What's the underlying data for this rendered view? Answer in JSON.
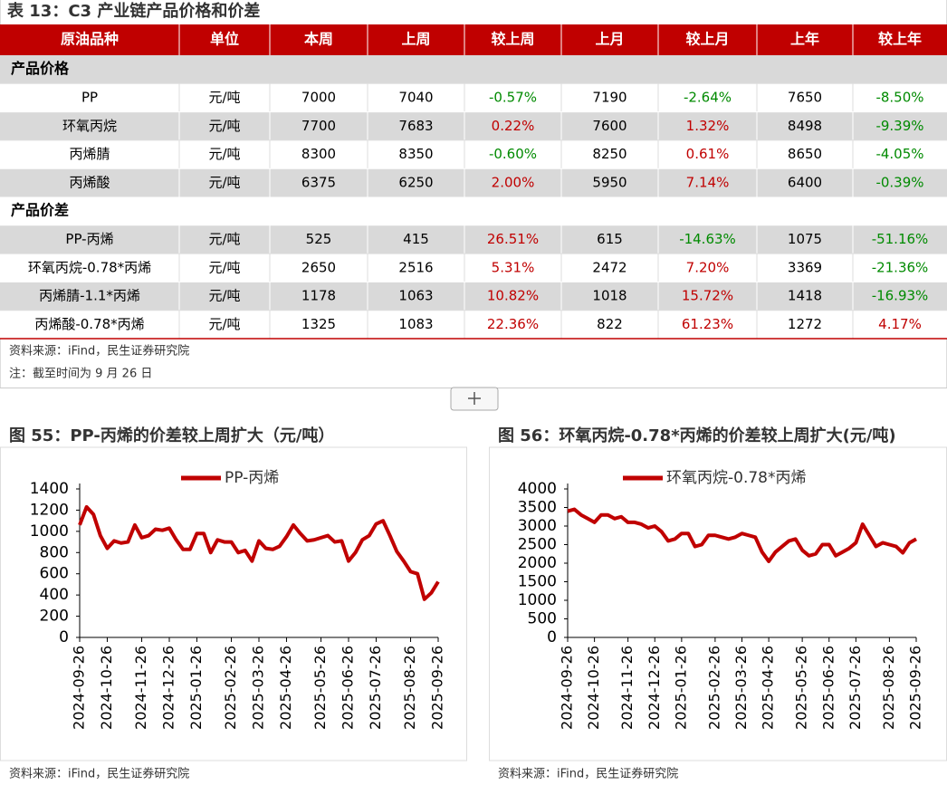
{
  "table": {
    "title": "表 13：C3 产业链产品价格和价差",
    "headers": [
      "原油品种",
      "单位",
      "本周",
      "上周",
      "较上周",
      "上月",
      "较上月",
      "上年",
      "较上年"
    ],
    "sections": [
      {
        "name": "产品价格",
        "rows": [
          [
            "PP",
            "元/吨",
            "7000",
            "7040",
            "-0.57%",
            "7190",
            "-2.64%",
            "7650",
            "-8.50%"
          ],
          [
            "环氧丙烷",
            "元/吨",
            "7700",
            "7683",
            "0.22%",
            "7600",
            "1.32%",
            "8498",
            "-9.39%"
          ],
          [
            "丙烯腈",
            "元/吨",
            "8300",
            "8350",
            "-0.60%",
            "8250",
            "0.61%",
            "8650",
            "-4.05%"
          ],
          [
            "丙烯酸",
            "元/吨",
            "6375",
            "6250",
            "2.00%",
            "5950",
            "7.14%",
            "6400",
            "-0.39%"
          ]
        ]
      },
      {
        "name": "产品价差",
        "rows": [
          [
            "PP-丙烯",
            "元/吨",
            "525",
            "415",
            "26.51%",
            "615",
            "-14.63%",
            "1075",
            "-51.16%"
          ],
          [
            "环氧丙烷-0.78*丙烯",
            "元/吨",
            "2650",
            "2516",
            "5.31%",
            "2472",
            "7.20%",
            "3369",
            "-21.36%"
          ],
          [
            "丙烯腈-1.1*丙烯",
            "元/吨",
            "1178",
            "1063",
            "10.82%",
            "1018",
            "15.72%",
            "1418",
            "-16.93%"
          ],
          [
            "丙烯酸-0.78*丙烯",
            "元/吨",
            "1325",
            "1083",
            "22.36%",
            "822",
            "61.23%",
            "1272",
            "4.17%"
          ]
        ]
      }
    ],
    "source": "资料来源：iFind，民生证券研究院",
    "note": "注：截至时间为 9 月 26 日"
  },
  "chart_data": [
    {
      "type": "line",
      "title": "图 55：PP-丙烯的价差较上周扩大（元/吨）",
      "categories": [
        "2024-09-26",
        null,
        null,
        null,
        "2024-10-26",
        null,
        null,
        null,
        null,
        "2024-11-26",
        null,
        null,
        null,
        "2024-12-26",
        null,
        null,
        null,
        "2025-01-26",
        null,
        null,
        null,
        null,
        "2025-02-26",
        null,
        null,
        null,
        "2025-03-26",
        null,
        null,
        null,
        "2025-04-26",
        null,
        null,
        null,
        null,
        "2025-05-26",
        null,
        null,
        null,
        "2025-06-26",
        null,
        null,
        null,
        "2025-07-26",
        null,
        null,
        null,
        null,
        "2025-08-26",
        null,
        null,
        null,
        "2025-09-26"
      ],
      "series": [
        {
          "name": "PP-丙烯",
          "color": "#c00000",
          "values": [
            1060,
            1230,
            1160,
            960,
            840,
            910,
            890,
            900,
            1060,
            940,
            960,
            1020,
            1010,
            1030,
            920,
            830,
            830,
            980,
            980,
            800,
            920,
            900,
            900,
            800,
            820,
            720,
            910,
            840,
            830,
            860,
            950,
            1060,
            980,
            910,
            920,
            940,
            960,
            900,
            910,
            720,
            800,
            920,
            960,
            1070,
            1100,
            960,
            810,
            720,
            620,
            600,
            360,
            420,
            525
          ]
        }
      ],
      "ylim": [
        0,
        1400
      ],
      "yticks": [
        0,
        200,
        400,
        600,
        800,
        1000,
        1200,
        1400
      ],
      "source": "资料来源：iFind，民生证券研究院"
    },
    {
      "type": "line",
      "title": "图 56：环氧丙烷-0.78*丙烯的价差较上周扩大(元/吨)",
      "categories": [
        "2024-09-26",
        null,
        null,
        null,
        "2024-10-26",
        null,
        null,
        null,
        null,
        "2024-11-26",
        null,
        null,
        null,
        "2024-12-26",
        null,
        null,
        null,
        "2025-01-26",
        null,
        null,
        null,
        null,
        "2025-02-26",
        null,
        null,
        null,
        "2025-03-26",
        null,
        null,
        null,
        "2025-04-26",
        null,
        null,
        null,
        null,
        "2025-05-26",
        null,
        null,
        null,
        "2025-06-26",
        null,
        null,
        null,
        "2025-07-26",
        null,
        null,
        null,
        null,
        "2025-08-26",
        null,
        null,
        null,
        "2025-09-26"
      ],
      "series": [
        {
          "name": "环氧丙烷-0.78*丙烯",
          "color": "#c00000",
          "values": [
            3400,
            3450,
            3300,
            3200,
            3100,
            3300,
            3300,
            3200,
            3250,
            3100,
            3100,
            3050,
            2950,
            3000,
            2850,
            2600,
            2650,
            2800,
            2800,
            2450,
            2500,
            2750,
            2750,
            2700,
            2650,
            2700,
            2800,
            2750,
            2700,
            2300,
            2050,
            2300,
            2450,
            2600,
            2650,
            2350,
            2200,
            2250,
            2500,
            2500,
            2200,
            2300,
            2400,
            2550,
            3050,
            2750,
            2450,
            2550,
            2500,
            2450,
            2280,
            2550,
            2650
          ]
        }
      ],
      "ylim": [
        0,
        4000
      ],
      "yticks": [
        0,
        500,
        1000,
        1500,
        2000,
        2500,
        3000,
        3500,
        4000
      ],
      "source": "资料来源：iFind，民生证券研究院"
    }
  ]
}
